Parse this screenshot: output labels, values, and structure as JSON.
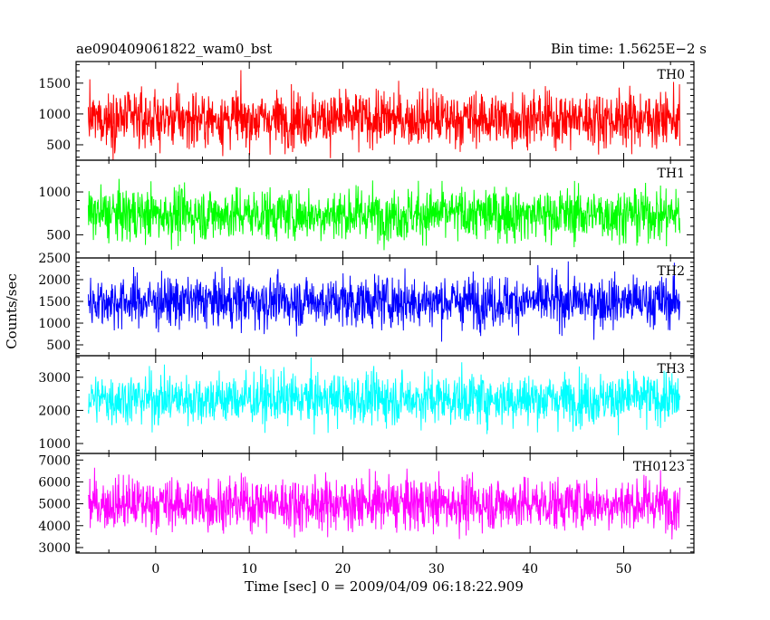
{
  "header": {
    "left_title": "ae090409061822_wam0_bst",
    "right_title": "Bin time: 1.5625E−2 s"
  },
  "chart_data": {
    "type": "line",
    "title": "ae090409061822_wam0_bst",
    "subtitle": "Bin time: 1.5625E−2 s",
    "xlabel": "Time [sec] 0 = 2009/04/09 06:18:22.909",
    "ylabel": "Counts/sec",
    "xlim": [
      -8.5,
      57.5
    ],
    "x_ticks": [
      0,
      10,
      20,
      30,
      40,
      50
    ],
    "x_tick_labels": [
      "0",
      "10",
      "20",
      "30",
      "40",
      "50"
    ],
    "data_range_x": [
      -7.2,
      56.0
    ],
    "bin_time_s": 0.015625,
    "grid": false,
    "panels": [
      {
        "name": "TH0",
        "color": "#ff0000",
        "ylim": [
          250,
          1850
        ],
        "y_ticks": [
          500,
          1000,
          1500
        ],
        "y_tick_labels": [
          "500",
          "1000",
          "1500"
        ],
        "mean": 920,
        "min": 200,
        "max": 1850
      },
      {
        "name": "TH1",
        "color": "#00ff00",
        "ylim": [
          230,
          1370
        ],
        "y_ticks": [
          500,
          1000
        ],
        "y_tick_labels": [
          "500",
          "1000"
        ],
        "mean": 740,
        "min": 240,
        "max": 1370
      },
      {
        "name": "TH2",
        "color": "#0000ff",
        "ylim": [
          250,
          2500
        ],
        "y_ticks": [
          500,
          1000,
          1500,
          2000,
          2500
        ],
        "y_tick_labels": [
          "500",
          "1000",
          "1500",
          "2000",
          "2500"
        ],
        "mean": 1500,
        "min": 350,
        "max": 2500
      },
      {
        "name": "TH3",
        "color": "#00ffff",
        "ylim": [
          700,
          3650
        ],
        "y_ticks": [
          1000,
          2000,
          3000
        ],
        "y_tick_labels": [
          "1000",
          "2000",
          "3000"
        ],
        "mean": 2350,
        "min": 800,
        "max": 3650
      },
      {
        "name": "TH0123",
        "color": "#ff00ff",
        "ylim": [
          2750,
          7300
        ],
        "y_ticks": [
          3000,
          4000,
          5000,
          6000,
          7000
        ],
        "y_tick_labels": [
          "3000",
          "4000",
          "5000",
          "6000",
          "7000"
        ],
        "mean": 5000,
        "min": 2800,
        "max": 7200
      }
    ]
  }
}
